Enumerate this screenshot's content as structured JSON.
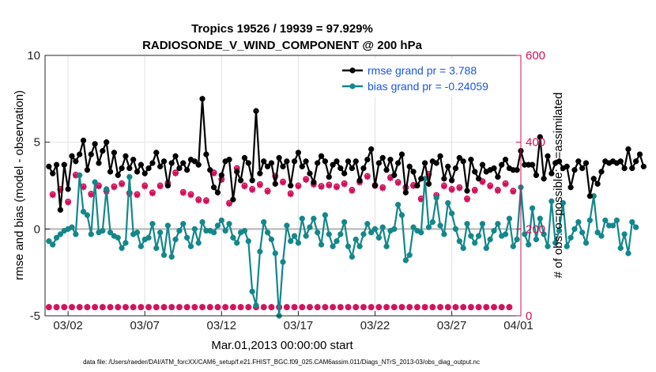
{
  "colors": {
    "rmse": "#000000",
    "bias": "#13878a",
    "obs": "#d0105a",
    "legend_text": "#1a55e0",
    "zero_line": "#b3b3b3",
    "grid": "#e2e2e2"
  },
  "footnote": "data file: /Users/raeder/DAI/ATM_forcXX/CAM6_setup/f.e21.FHIST_BGC.f09_025.CAM6assim.011/Diags_NTrS_2013-03/obs_diag_output.nc",
  "chart_data": {
    "type": "line",
    "title": "Tropics 19526 / 19939 = 97.929%",
    "subtitle": "RADIOSONDE_V_WIND_COMPONENT @ 200 hPa",
    "xlabel": "Mar.01,2013 00:00:00 start",
    "ylabel": "rmse and bias (model - observation)",
    "ylabel_right": "# of obs: o=possible; ×=assimilated",
    "xlim": [
      0,
      31
    ],
    "ylim": [
      -5,
      10
    ],
    "ylim_right": [
      0,
      600
    ],
    "x_tick_values": [
      1.5,
      6.5,
      11.5,
      16.5,
      21.5,
      26.5,
      31.5
    ],
    "x_tick_labels": [
      "03/02",
      "03/07",
      "03/12",
      "03/17",
      "03/22",
      "03/27",
      "04/01"
    ],
    "y_ticks": [
      -5,
      0,
      5,
      10
    ],
    "y_ticks_right": [
      0,
      200,
      400,
      600
    ],
    "legend": [
      {
        "label": "rmse grand pr = 3.788",
        "series": "rmse"
      },
      {
        "label": "bias grand pr = -0.24059",
        "series": "bias"
      }
    ],
    "x_start": 0.25,
    "x_step": 0.25,
    "series": [
      {
        "name": "rmse",
        "values": [
          3.6,
          3.2,
          3.7,
          1.1,
          3.7,
          2.3,
          4.2,
          3.9,
          4.3,
          5.1,
          3.4,
          4.3,
          4.9,
          3.8,
          4.5,
          5.0,
          3.3,
          4.4,
          3.1,
          3.5,
          4.2,
          3.5,
          4.0,
          3.3,
          3.7,
          3.2,
          3.5,
          3.8,
          4.4,
          3.6,
          3.9,
          2.5,
          3.8,
          4.2,
          3.5,
          3.8,
          3.4,
          4.0,
          3.9,
          3.7,
          7.5,
          4.3,
          3.4,
          2.4,
          2.1,
          3.1,
          3.9,
          4.0,
          1.7,
          3.3,
          2.8,
          4.1,
          3.8,
          2.8,
          6.8,
          3.2,
          3.9,
          3.6,
          3.8,
          2.6,
          4.1,
          3.6,
          3.9,
          2.5,
          3.9,
          4.4,
          3.6,
          3.9,
          3.2,
          2.7,
          3.8,
          4.2,
          3.9,
          3.0,
          3.7,
          3.9,
          3.5,
          3.2,
          3.9,
          3.5,
          3.9,
          2.8,
          3.5,
          4.0,
          4.6,
          2.5,
          3.8,
          4.1,
          3.4,
          4.0,
          3.1,
          3.8,
          4.3,
          2.1,
          3.6,
          3.3,
          2.5,
          2.9,
          3.8,
          2.6,
          3.9,
          3.8,
          4.2,
          2.9,
          3.6,
          2.8,
          3.5,
          4.1,
          3.9,
          2.2,
          4.0,
          3.3,
          2.9,
          3.7,
          3.3,
          3.4,
          3.5,
          3.0,
          3.7,
          4.0,
          3.5,
          3.4,
          3.4,
          4.5,
          3.7,
          3.7,
          3.7,
          3.1,
          5.3,
          2.9,
          4.2,
          3.2,
          3.8,
          3.9,
          3.5,
          3.6,
          2.4,
          3.4,
          3.9,
          3.5,
          3.8,
          1.9,
          2.9,
          2.6,
          3.3,
          3.9,
          3.8,
          3.9,
          3.8,
          3.9,
          3.5,
          4.6,
          3.5,
          3.9,
          4.3,
          3.6
        ]
      },
      {
        "name": "bias",
        "values": [
          -0.7,
          -0.9,
          -0.5,
          -0.3,
          -0.1,
          0.0,
          0.1,
          -0.3,
          3.1,
          1.0,
          0.8,
          -0.3,
          2.7,
          -0.2,
          -0.1,
          2.3,
          -0.2,
          -0.4,
          -0.5,
          -1.1,
          -0.8,
          3.0,
          -0.3,
          -0.2,
          -1.0,
          -0.6,
          -0.5,
          0.3,
          -1.1,
          -0.2,
          -1.5,
          0.2,
          -1.6,
          -0.6,
          -0.1,
          0.3,
          -0.5,
          -1.0,
          0.0,
          -0.8,
          0.4,
          -0.1,
          -0.1,
          -0.2,
          0.2,
          0.5,
          -0.1,
          0.3,
          -0.5,
          -0.8,
          -0.2,
          -0.1,
          -0.7,
          -3.6,
          -4.4,
          -1.3,
          0.4,
          -0.2,
          -0.6,
          -1.4,
          -5.0,
          -1.9,
          0.2,
          -0.7,
          -0.4,
          -0.8,
          0.6,
          -0.4,
          0.1,
          0.6,
          -0.2,
          -0.9,
          0.8,
          -0.3,
          -1.0,
          -0.7,
          -0.3,
          0.4,
          -1.0,
          -1.6,
          -0.6,
          -1.0,
          -0.3,
          0.3,
          -0.2,
          0.0,
          -0.5,
          0.1,
          -1.0,
          -0.1,
          0.0,
          1.4,
          0.8,
          -1.8,
          -1.5,
          0.1,
          -0.1,
          -0.2,
          2.9,
          0.1,
          0.4,
          1.8,
          0.2,
          -0.3,
          1.5,
          0.9,
          0.0,
          -0.7,
          -1.1,
          0.3,
          -0.4,
          -0.8,
          -0.4,
          0.3,
          -1.1,
          -0.6,
          -0.1,
          0.3,
          -0.4,
          -0.3,
          0.6,
          -1.0,
          -0.6,
          2.4,
          -0.3,
          -0.9,
          1.2,
          -0.6,
          0.6,
          -0.3,
          -1.0,
          1.6,
          -0.8,
          -0.1,
          1.5,
          -1.0,
          -0.5,
          0.0,
          0.4,
          -0.2,
          -0.8,
          0.5,
          1.9,
          -0.2,
          -0.4,
          0.5,
          0.2,
          0.2,
          0.5,
          -1.1,
          -0.3,
          -1.4,
          0.4,
          0.1
        ]
      },
      {
        "name": "obs_possible",
        "axis": "right",
        "values": [
          20,
          280,
          20,
          292,
          20,
          263,
          20,
          325,
          20,
          298,
          20,
          281,
          20,
          300,
          20,
          288,
          20,
          298,
          20,
          305,
          20,
          283,
          20,
          280,
          20,
          300,
          20,
          284,
          20,
          300,
          20,
          306,
          20,
          330,
          20,
          285,
          20,
          280,
          20,
          268,
          20,
          266,
          20,
          330,
          20,
          315,
          20,
          260,
          20,
          340,
          20,
          300,
          20,
          292,
          20,
          303,
          20,
          288,
          20,
          322,
          20,
          309,
          20,
          282,
          20,
          300,
          20,
          315,
          20,
          304,
          20,
          299,
          20,
          302,
          20,
          298,
          20,
          305,
          20,
          290,
          20,
          309,
          20,
          322,
          20,
          301,
          20,
          296,
          20,
          319,
          20,
          308,
          20,
          296,
          20,
          301,
          20,
          270,
          20,
          327,
          20,
          278,
          20,
          300,
          20,
          292,
          20,
          296,
          20,
          270,
          20,
          290,
          20,
          310,
          20,
          300,
          20,
          290,
          20,
          305,
          20,
          288
        ]
      },
      {
        "name": "obs_assimilated",
        "axis": "right",
        "values": [
          20,
          278,
          20,
          290,
          20,
          261,
          20,
          323,
          20,
          296,
          20,
          279,
          20,
          298,
          20,
          286,
          20,
          296,
          20,
          303,
          20,
          281,
          20,
          278,
          20,
          298,
          20,
          282,
          20,
          298,
          20,
          304,
          20,
          328,
          20,
          283,
          20,
          278,
          20,
          266,
          20,
          264,
          20,
          328,
          20,
          313,
          20,
          258,
          20,
          338,
          20,
          298,
          20,
          290,
          20,
          301,
          20,
          286,
          20,
          320,
          20,
          307,
          20,
          280,
          20,
          298,
          20,
          313,
          20,
          302,
          20,
          297,
          20,
          300,
          20,
          296,
          20,
          303,
          20,
          288,
          20,
          307,
          20,
          320,
          20,
          299,
          20,
          294,
          20,
          317,
          20,
          306,
          20,
          294,
          20,
          299,
          20,
          268,
          20,
          325,
          20,
          276,
          20,
          298,
          20,
          290,
          20,
          294,
          20,
          268,
          20,
          288,
          20,
          308,
          20,
          298,
          20,
          288,
          20,
          303,
          20,
          286
        ]
      }
    ]
  }
}
